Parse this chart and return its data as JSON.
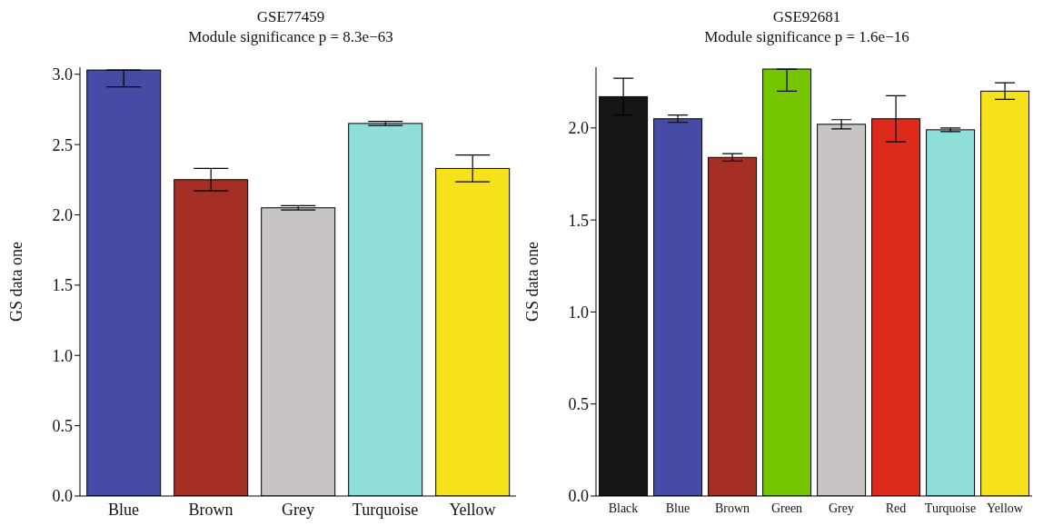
{
  "chart_data": [
    {
      "type": "bar",
      "title": "GSE77459",
      "subtitle": "Module significance p = 8.3e−63",
      "ylabel": "GS data one",
      "categories": [
        "Blue",
        "Brown",
        "Grey",
        "Turquoise",
        "Yellow"
      ],
      "values": [
        3.03,
        2.25,
        2.05,
        2.65,
        2.33
      ],
      "colors": [
        "#464ca6",
        "#a52e25",
        "#c8c4c3",
        "#8fded9",
        "#f5e21a"
      ],
      "errors": [
        [
          2.91,
          3.03
        ],
        0.08,
        0.015,
        0.015,
        0.095
      ],
      "ylim": [
        0,
        3.05
      ],
      "yticks": [
        {
          "value": 0,
          "label": "0.0"
        },
        0.5,
        {
          "value": 1,
          "label": "1.0"
        },
        1.5,
        {
          "value": 2,
          "label": "2.0"
        },
        2.5,
        {
          "value": 3,
          "label": "3.0"
        }
      ],
      "grid": false
    },
    {
      "type": "bar",
      "title": "GSE92681",
      "subtitle": "Module significance p = 1.6e−16",
      "ylabel": "GS data one",
      "categories": [
        "Black",
        "Blue",
        "Brown",
        "Green",
        "Grey",
        "Red",
        "Turquoise",
        "Yellow"
      ],
      "values": [
        2.17,
        2.05,
        1.84,
        2.32,
        2.02,
        2.05,
        1.99,
        2.2
      ],
      "colors": [
        "#161616",
        "#464ca6",
        "#a52e25",
        "#75c600",
        "#c8c4c3",
        "#dc2b1b",
        "#8fded9",
        "#f5e21a"
      ],
      "errors": [
        0.1,
        0.02,
        0.02,
        [
          2.2,
          2.32
        ],
        0.025,
        0.125,
        0.01,
        0.045
      ],
      "ylim": [
        0,
        2.33
      ],
      "yticks": [
        {
          "value": 0,
          "label": "0.0"
        },
        0.5,
        {
          "value": 1,
          "label": "1.0"
        },
        1.5,
        {
          "value": 2,
          "label": "2.0"
        }
      ],
      "grid": false
    }
  ]
}
